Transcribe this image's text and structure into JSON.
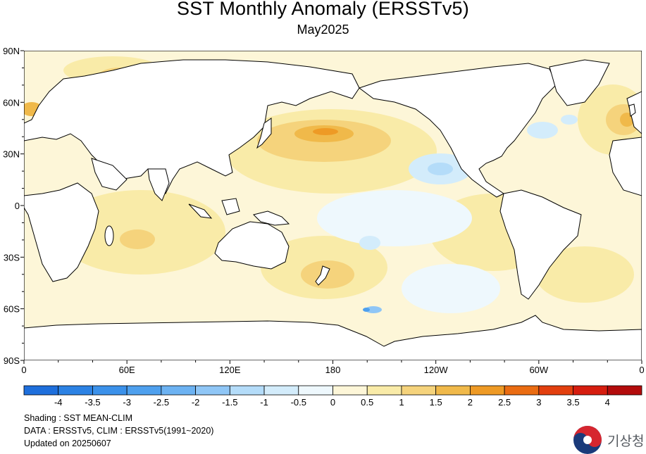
{
  "title": "SST Monthly Anomaly (ERSSTv5)",
  "subtitle": "May2025",
  "map": {
    "lat_labels": [
      "90N",
      "60N",
      "30N",
      "0",
      "30S",
      "60S",
      "90S"
    ],
    "lon_labels": [
      "0",
      "60E",
      "120E",
      "180",
      "120W",
      "60W",
      "0"
    ]
  },
  "colorbar": {
    "labels": [
      "-4",
      "-3.5",
      "-3",
      "-2.5",
      "-2",
      "-1.5",
      "-1",
      "-0.5",
      "0",
      "0.5",
      "1",
      "1.5",
      "2",
      "2.5",
      "3",
      "3.5",
      "4"
    ],
    "colors": [
      "#1e6fdc",
      "#2c82e4",
      "#3b91ea",
      "#4ea0ee",
      "#6cb2f2",
      "#8fc6f6",
      "#b4dcf9",
      "#d3ecfb",
      "#eef8fd",
      "#fdf6d8",
      "#f9eba8",
      "#f5d37c",
      "#f0b94a",
      "#ee9a25",
      "#ea6c12",
      "#e23f0e",
      "#d61d0f",
      "#b30c0c"
    ]
  },
  "footnotes": {
    "shading": "Shading : SST MEAN-CLIM",
    "data": "DATA : ERSSTv5, CLIM : ERSSTv5(1991~2020)",
    "updated": "Updated on 20250607"
  },
  "logo": {
    "text": "기상청"
  }
}
